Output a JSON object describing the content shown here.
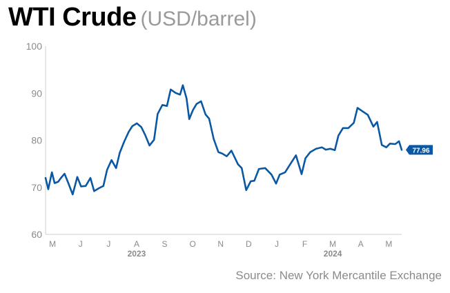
{
  "title": "WTI Crude",
  "subtitle": "(USD/barrel)",
  "source": "Source: New York Mercantile Exchange",
  "colors": {
    "line": "#0a57a4",
    "axis": "#cfcfcf",
    "tick_text": "#8a8a8a",
    "label_bg": "#0a57a4",
    "label_text": "#ffffff"
  },
  "chart_data": {
    "type": "line",
    "title": "WTI Crude",
    "ylabel": "",
    "xlabel": "",
    "ylim": [
      60,
      100
    ],
    "yticks": [
      60,
      70,
      80,
      90,
      100
    ],
    "grid": false,
    "x_unit": "month",
    "x_start": "2023-05",
    "x_end": "2024-05-23",
    "month_ticks": [
      "M",
      "J",
      "J",
      "A",
      "S",
      "O",
      "N",
      "D",
      "J",
      "F",
      "M",
      "A",
      "M"
    ],
    "year_labels": [
      {
        "label": "2023",
        "at": "2023-08"
      },
      {
        "label": "2024",
        "at": "2024-03"
      }
    ],
    "last_value_label": "77.96",
    "series": [
      {
        "x": [
          "2023-05-01",
          "2023-05-04",
          "2023-05-08",
          "2023-05-11",
          "2023-05-15",
          "2023-05-18",
          "2023-05-22",
          "2023-05-26",
          "2023-05-31",
          "2023-06-05",
          "2023-06-09",
          "2023-06-14",
          "2023-06-19",
          "2023-06-23",
          "2023-06-28",
          "2023-07-03",
          "2023-07-07",
          "2023-07-12",
          "2023-07-17",
          "2023-07-21",
          "2023-07-26",
          "2023-07-31",
          "2023-08-04",
          "2023-08-09",
          "2023-08-14",
          "2023-08-18",
          "2023-08-23",
          "2023-08-28",
          "2023-09-01",
          "2023-09-06",
          "2023-09-11",
          "2023-09-15",
          "2023-09-20",
          "2023-09-25",
          "2023-09-28",
          "2023-10-02",
          "2023-10-05",
          "2023-10-09",
          "2023-10-13",
          "2023-10-18",
          "2023-10-23",
          "2023-10-27",
          "2023-11-01",
          "2023-11-06",
          "2023-11-10",
          "2023-11-15",
          "2023-11-20",
          "2023-11-27",
          "2023-12-01",
          "2023-12-06",
          "2023-12-11",
          "2023-12-15",
          "2023-12-20",
          "2023-12-27",
          "2024-01-03",
          "2024-01-08",
          "2024-01-12",
          "2024-01-18",
          "2024-01-24",
          "2024-01-30",
          "2024-02-05",
          "2024-02-09",
          "2024-02-14",
          "2024-02-20",
          "2024-02-26",
          "2024-03-01",
          "2024-03-06",
          "2024-03-11",
          "2024-03-15",
          "2024-03-20",
          "2024-03-26",
          "2024-04-01",
          "2024-04-05",
          "2024-04-10",
          "2024-04-16",
          "2024-04-22",
          "2024-04-26",
          "2024-05-01",
          "2024-05-06",
          "2024-05-10",
          "2024-05-16",
          "2024-05-20",
          "2024-05-23"
        ],
        "values": [
          72.0,
          69.6,
          73.2,
          70.9,
          71.2,
          72.0,
          72.9,
          71.0,
          68.5,
          72.2,
          70.2,
          70.3,
          72.0,
          69.2,
          69.8,
          70.3,
          73.7,
          75.8,
          74.1,
          77.3,
          79.7,
          81.8,
          83.0,
          83.6,
          82.8,
          81.2,
          78.9,
          80.1,
          85.6,
          87.5,
          87.3,
          90.8,
          90.1,
          89.7,
          91.7,
          88.9,
          84.5,
          86.4,
          87.7,
          88.3,
          85.5,
          84.6,
          80.3,
          77.5,
          77.2,
          76.6,
          77.8,
          74.9,
          74.1,
          69.4,
          71.3,
          71.4,
          73.9,
          74.1,
          72.7,
          70.8,
          72.7,
          73.2,
          75.0,
          76.8,
          72.8,
          76.2,
          77.5,
          78.2,
          78.5,
          78.0,
          78.2,
          77.9,
          81.0,
          82.6,
          82.6,
          83.7,
          86.9,
          86.2,
          85.4,
          82.9,
          83.9,
          79.0,
          78.5,
          79.3,
          79.2,
          79.8,
          77.96
        ]
      }
    ]
  }
}
